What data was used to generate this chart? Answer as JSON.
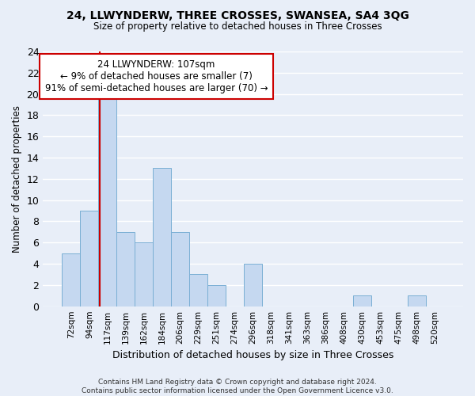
{
  "title": "24, LLWYNDERW, THREE CROSSES, SWANSEA, SA4 3QG",
  "subtitle": "Size of property relative to detached houses in Three Crosses",
  "xlabel": "Distribution of detached houses by size in Three Crosses",
  "ylabel": "Number of detached properties",
  "bar_labels": [
    "72sqm",
    "94sqm",
    "117sqm",
    "139sqm",
    "162sqm",
    "184sqm",
    "206sqm",
    "229sqm",
    "251sqm",
    "274sqm",
    "296sqm",
    "318sqm",
    "341sqm",
    "363sqm",
    "386sqm",
    "408sqm",
    "430sqm",
    "453sqm",
    "475sqm",
    "498sqm",
    "520sqm"
  ],
  "bar_values": [
    5,
    9,
    20,
    7,
    6,
    13,
    7,
    3,
    2,
    0,
    4,
    0,
    0,
    0,
    0,
    0,
    1,
    0,
    0,
    1,
    0
  ],
  "bar_color": "#c5d8f0",
  "bar_edge_color": "#7aafd4",
  "vline_x": 1.575,
  "vline_color": "#cc0000",
  "annotation_text": "24 LLWYNDERW: 107sqm\n← 9% of detached houses are smaller (7)\n91% of semi-detached houses are larger (70) →",
  "annotation_box_facecolor": "#ffffff",
  "annotation_box_edgecolor": "#cc0000",
  "ylim": [
    0,
    24
  ],
  "yticks": [
    0,
    2,
    4,
    6,
    8,
    10,
    12,
    14,
    16,
    18,
    20,
    22,
    24
  ],
  "bg_color": "#e8eef8",
  "grid_color": "#ffffff",
  "footer": "Contains HM Land Registry data © Crown copyright and database right 2024.\nContains public sector information licensed under the Open Government Licence v3.0."
}
